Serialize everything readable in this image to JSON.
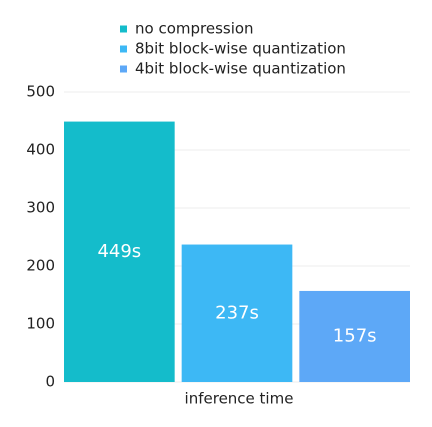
{
  "chart_data": {
    "type": "bar",
    "categories": [
      "inference time"
    ],
    "series": [
      {
        "name": "no compression",
        "color": "#14bccb",
        "values": [
          449
        ],
        "value_labels": [
          "449s"
        ]
      },
      {
        "name": "8bit block-wise quantization",
        "color": "#3db8f5",
        "values": [
          237
        ],
        "value_labels": [
          "237s"
        ]
      },
      {
        "name": "4bit block-wise quantization",
        "color": "#5da8f7",
        "values": [
          157
        ],
        "value_labels": [
          "157s"
        ]
      }
    ],
    "ylim": [
      0,
      500
    ],
    "yticks": [
      0,
      100,
      200,
      300,
      400,
      500
    ],
    "grid": true
  }
}
